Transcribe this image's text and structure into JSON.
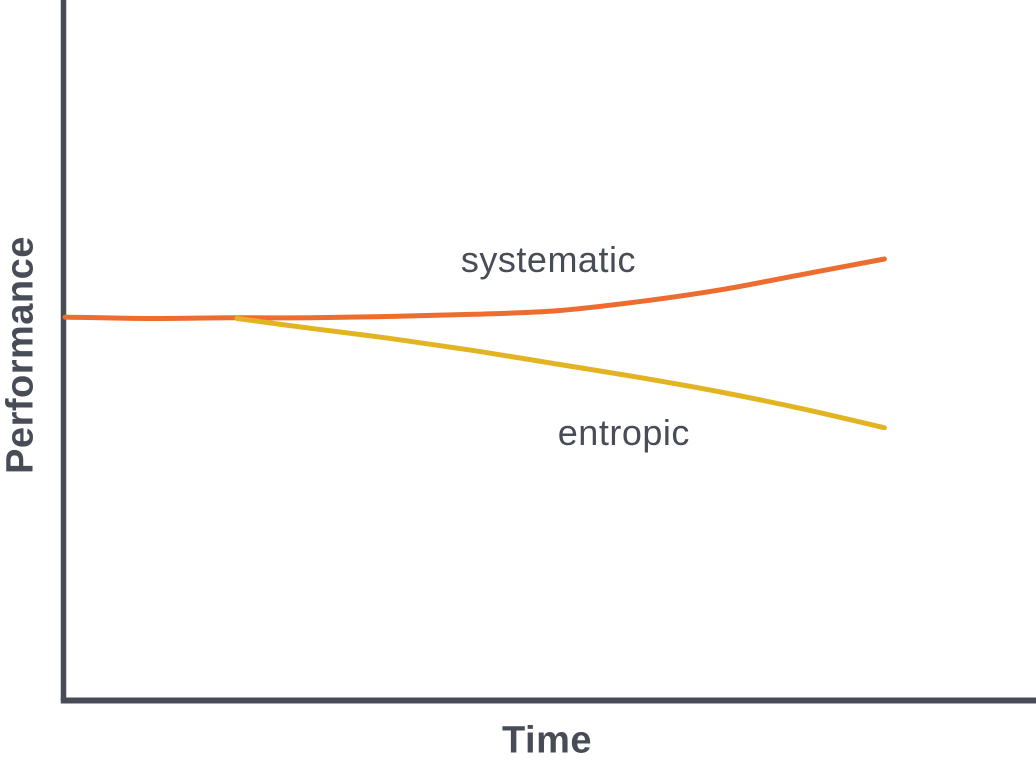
{
  "colors": {
    "background": "#FFFFFF",
    "text": "#474C56",
    "axis": "#474C56",
    "systematic_line": "#ED6C2F",
    "entropic_line": "#E3B422"
  },
  "chart_data": {
    "type": "line",
    "title": "",
    "xlabel": "Time",
    "ylabel": "Performance",
    "xlim": [
      0,
      11.85
    ],
    "ylim": [
      0,
      100
    ],
    "grid": false,
    "axis_ticks": "none",
    "legend": "inline-annotations",
    "series": [
      {
        "name": "systematic",
        "color": "#ED6C2F",
        "x": [
          0,
          1,
          2,
          3,
          4,
          5,
          6,
          7,
          8,
          9,
          10
        ],
        "y": [
          54.7,
          54.5,
          54.6,
          54.6,
          54.8,
          55.1,
          55.6,
          56.9,
          58.6,
          60.8,
          63.0
        ]
      },
      {
        "name": "entropic",
        "color": "#E3B422",
        "x": [
          2.1,
          3,
          4,
          5,
          6,
          7,
          8,
          9,
          10
        ],
        "y": [
          54.5,
          53.1,
          51.6,
          49.9,
          48.0,
          46.1,
          44.0,
          41.6,
          38.9
        ]
      }
    ],
    "annotations": [
      {
        "text": "systematic",
        "x": 5.9,
        "y": 62.9
      },
      {
        "text": "entropic",
        "x": 6.82,
        "y": 38.1
      }
    ]
  }
}
